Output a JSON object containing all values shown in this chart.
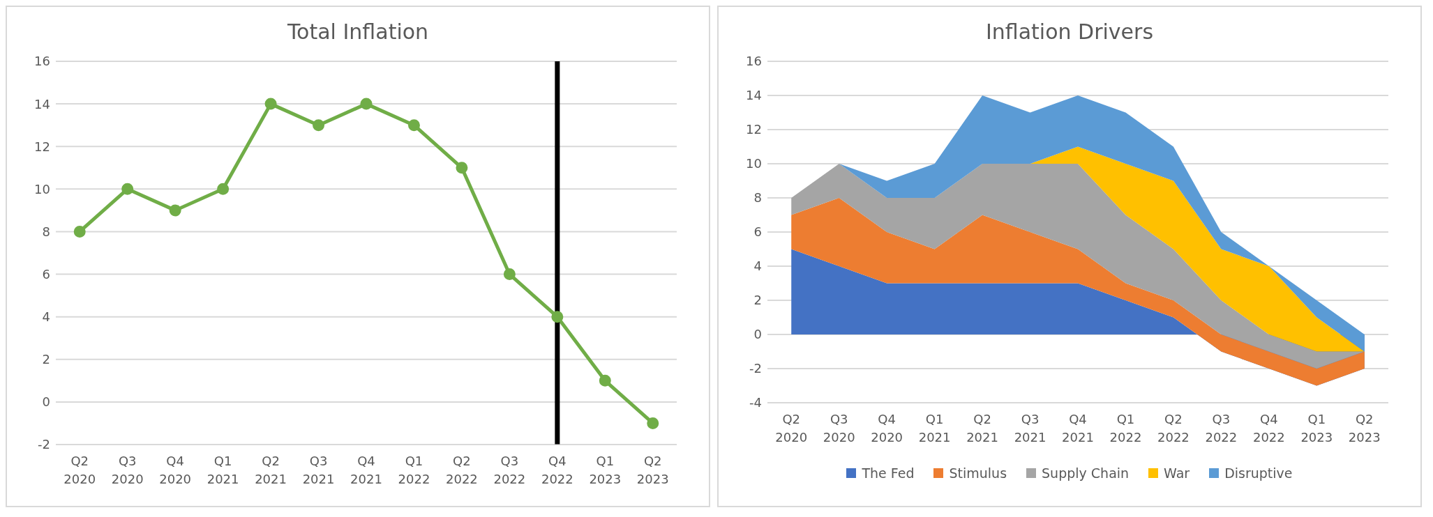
{
  "chart_data": [
    {
      "type": "line",
      "title": "Total Inflation",
      "categories": [
        "Q2 2020",
        "Q3 2020",
        "Q4 2020",
        "Q1 2021",
        "Q2 2021",
        "Q3 2021",
        "Q4 2021",
        "Q1 2022",
        "Q2 2022",
        "Q3 2022",
        "Q4 2022",
        "Q1 2023",
        "Q2 2023"
      ],
      "series": [
        {
          "color": "#70ad47",
          "values": [
            8,
            10,
            9,
            10,
            14,
            13,
            14,
            13,
            11,
            6,
            4,
            1,
            -1
          ]
        }
      ],
      "ylim": [
        -2,
        16
      ],
      "yticks": [
        -2,
        0,
        2,
        4,
        6,
        8,
        10,
        12,
        14,
        16
      ],
      "grid": "y",
      "legend": false,
      "marker": "circle",
      "line_style": "solid",
      "ref_lines": [
        {
          "axis": "x",
          "value": "Q4 2022",
          "color": "#000000"
        }
      ]
    },
    {
      "type": "area",
      "stacked": true,
      "title": "Inflation Drivers",
      "categories": [
        "Q2 2020",
        "Q3 2020",
        "Q4 2020",
        "Q1 2021",
        "Q2 2021",
        "Q3 2021",
        "Q4 2021",
        "Q1 2022",
        "Q2 2022",
        "Q3 2022",
        "Q4 2022",
        "Q1 2023",
        "Q2 2023"
      ],
      "series": [
        {
          "name": "The Fed",
          "color": "#4472c4",
          "values": [
            5,
            4,
            3,
            3,
            3,
            3,
            3,
            2,
            1,
            -1,
            -2,
            -3,
            -2
          ]
        },
        {
          "name": "Stimulus",
          "color": "#ed7d31",
          "values": [
            2,
            4,
            3,
            2,
            4,
            3,
            2,
            1,
            1,
            1,
            1,
            1,
            1
          ]
        },
        {
          "name": "Supply Chain",
          "color": "#a5a5a5",
          "values": [
            1,
            2,
            2,
            3,
            3,
            4,
            5,
            4,
            3,
            2,
            1,
            1,
            0
          ]
        },
        {
          "name": "War",
          "color": "#ffc000",
          "values": [
            0,
            0,
            0,
            0,
            0,
            0,
            1,
            3,
            4,
            3,
            4,
            2,
            0
          ]
        },
        {
          "name": "Disruptive",
          "color": "#5b9bd5",
          "values": [
            0,
            0,
            1,
            2,
            4,
            3,
            3,
            3,
            2,
            1,
            0,
            1,
            1
          ]
        }
      ],
      "ylim": [
        -4,
        16
      ],
      "yticks": [
        -4,
        -2,
        0,
        2,
        4,
        6,
        8,
        10,
        12,
        14,
        16
      ],
      "grid": "y",
      "legend": "bottom"
    }
  ]
}
